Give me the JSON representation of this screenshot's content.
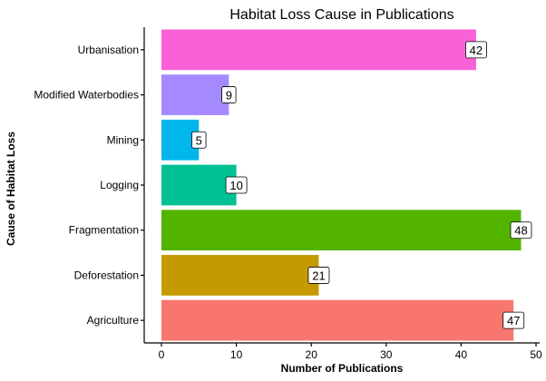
{
  "chart_data": {
    "type": "bar",
    "orientation": "horizontal",
    "title": "Habitat Loss Cause in Publications",
    "xlabel": "Number of Publications",
    "ylabel": "Cause of Habitat Loss",
    "xlim": [
      0,
      50
    ],
    "xticks": [
      0,
      10,
      20,
      30,
      40,
      50
    ],
    "grid": false,
    "legend": "none",
    "categories": [
      "Agriculture",
      "Deforestation",
      "Fragmentation",
      "Logging",
      "Mining",
      "Modified Waterbodies",
      "Urbanisation"
    ],
    "values": [
      47,
      21,
      48,
      10,
      5,
      9,
      42
    ],
    "colors": [
      "#F8766D",
      "#C49A00",
      "#53B400",
      "#00C094",
      "#00B6EB",
      "#A58AFF",
      "#FB61D7"
    ]
  }
}
